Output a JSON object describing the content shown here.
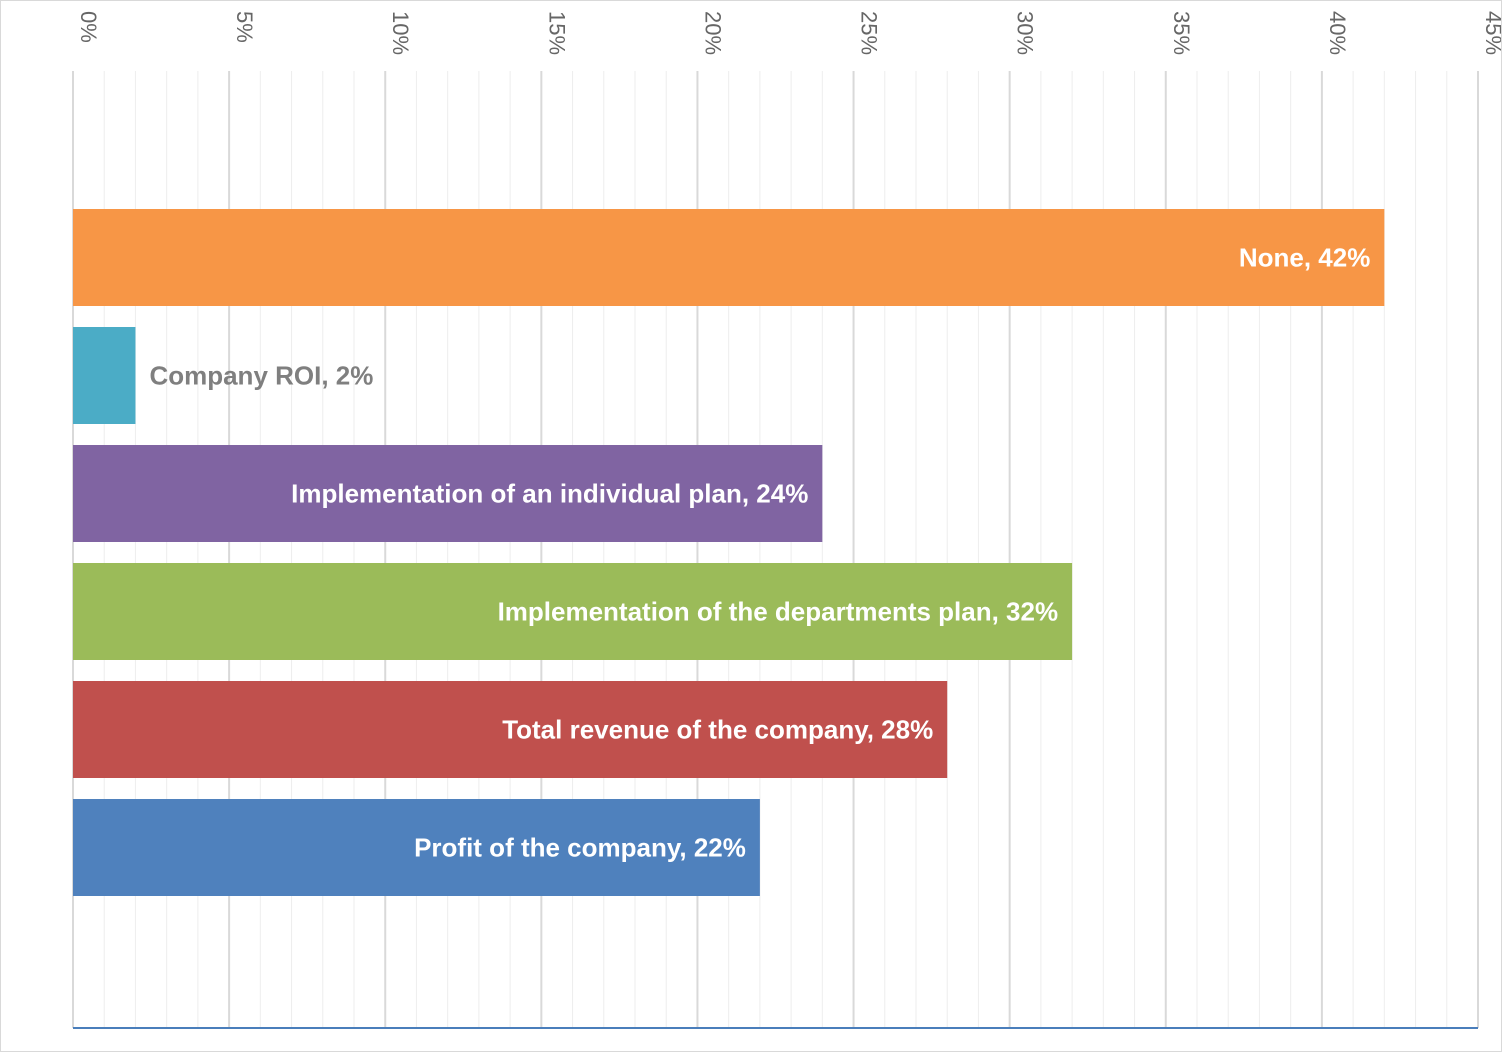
{
  "chart_data": {
    "type": "bar",
    "orientation": "horizontal",
    "x_axis_position": "top",
    "xlim": [
      0,
      45
    ],
    "x_major_ticks": [
      0,
      5,
      10,
      15,
      20,
      25,
      30,
      35,
      40,
      45
    ],
    "x_tick_labels": [
      "0%",
      "5%",
      "10%",
      "15%",
      "20%",
      "25%",
      "30%",
      "35%",
      "40%",
      "45%"
    ],
    "x_minor_tick_step": 1,
    "grid": true,
    "legend": "none",
    "bars": [
      {
        "label": "None, 42%",
        "value": 42,
        "color": "#F79646",
        "label_color": "#ffffff",
        "label_position": "inside-end"
      },
      {
        "label": "Company ROI, 2%",
        "value": 2,
        "color": "#4BACC6",
        "label_color": "#7f7f7f",
        "label_position": "outside-end"
      },
      {
        "label": "Implementation of an individual plan, 24%",
        "value": 24,
        "color": "#8064A2",
        "label_color": "#ffffff",
        "label_position": "inside-end"
      },
      {
        "label": "Implementation of the departments plan, 32%",
        "value": 32,
        "color": "#9BBB59",
        "label_color": "#ffffff",
        "label_position": "inside-end"
      },
      {
        "label": "Total revenue of the company, 28%",
        "value": 28,
        "color": "#C0504D",
        "label_color": "#ffffff",
        "label_position": "inside-end"
      },
      {
        "label": "Profit of the company, 22%",
        "value": 22,
        "color": "#4F81BD",
        "label_color": "#ffffff",
        "label_position": "inside-end"
      }
    ]
  },
  "colors": {
    "major_grid": "#d9d9d9",
    "minor_grid": "#eeeeee",
    "baseline": "#4a7ebb"
  }
}
